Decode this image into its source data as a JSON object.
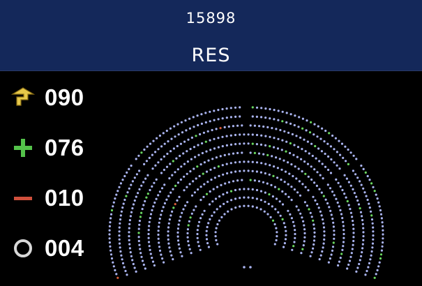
{
  "header": {
    "vote_id": "15898",
    "vote_code": "RES"
  },
  "legend": [
    {
      "key": "present",
      "icon": "present-arrow-icon",
      "count": "090",
      "color": "#e6c84a"
    },
    {
      "key": "for",
      "icon": "plus-icon",
      "count": "076",
      "color": "#54c24a"
    },
    {
      "key": "against",
      "icon": "minus-icon",
      "count": "010",
      "color": "#d0503c"
    },
    {
      "key": "abstain",
      "icon": "ring-icon",
      "count": "004",
      "color": "#c8c8c8"
    }
  ],
  "seat_colors": {
    "empty": "#aab4f0",
    "for": "#6ad860",
    "against": "#d85a38",
    "background": "#000000",
    "header": "#14285a"
  }
}
